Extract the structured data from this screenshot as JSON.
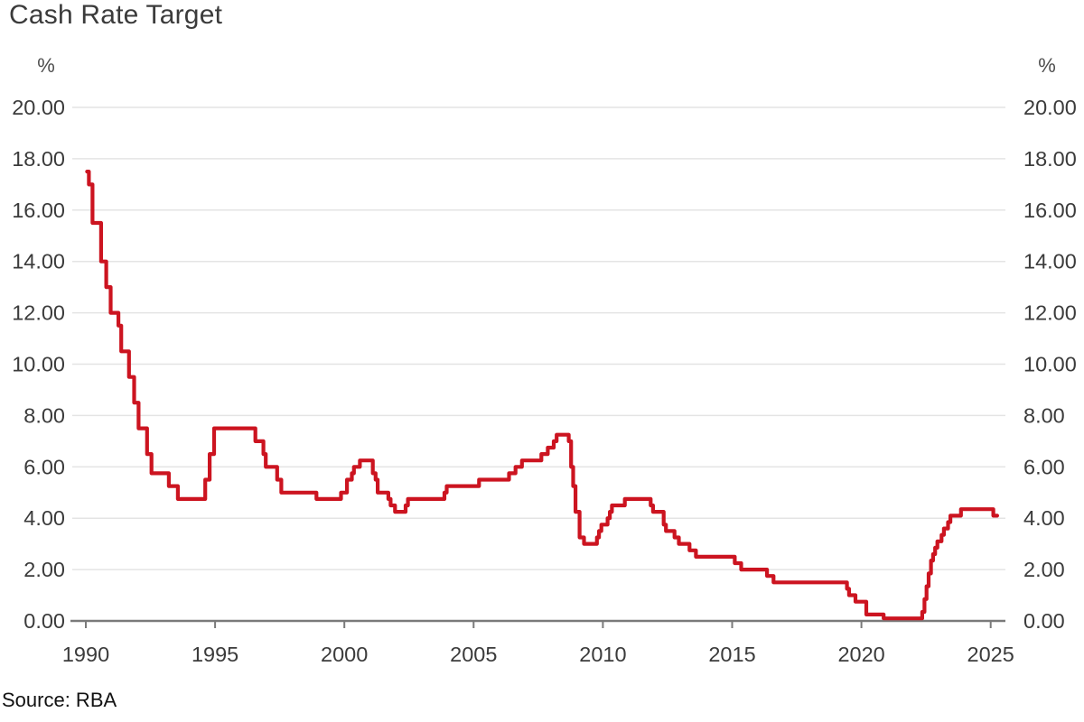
{
  "title": "Cash Rate Target",
  "source": "Source: RBA",
  "chart_data": {
    "type": "line",
    "title": "Cash Rate Target",
    "unit_label": "%",
    "source": "Source: RBA",
    "line_color": "#cc1420",
    "grid_color": "#e4e4e4",
    "axis_color": "#7a7a7a",
    "tick_label_color": "#3b3b3b",
    "grid": "horizontal",
    "legend": "none",
    "xlim": [
      1989.42,
      2025.6
    ],
    "ylim": [
      0,
      20
    ],
    "x_ticks": [
      1990,
      1995,
      2000,
      2005,
      2010,
      2015,
      2020,
      2025
    ],
    "y_ticks": [
      0,
      2,
      4,
      6,
      8,
      10,
      12,
      14,
      16,
      18,
      20
    ],
    "y_tick_labels": [
      "0.00",
      "2.00",
      "4.00",
      "6.00",
      "8.00",
      "10.00",
      "12.00",
      "14.00",
      "16.00",
      "18.00",
      "20.00"
    ],
    "series": [
      {
        "name": "Cash Rate Target (%)",
        "step": "after",
        "points": [
          [
            1990.05,
            17.5
          ],
          [
            1990.12,
            17.0
          ],
          [
            1990.26,
            15.5
          ],
          [
            1990.59,
            14.0
          ],
          [
            1990.79,
            13.0
          ],
          [
            1990.96,
            12.0
          ],
          [
            1991.26,
            11.5
          ],
          [
            1991.37,
            10.5
          ],
          [
            1991.67,
            9.5
          ],
          [
            1991.87,
            8.5
          ],
          [
            1992.04,
            7.5
          ],
          [
            1992.37,
            6.5
          ],
          [
            1992.54,
            5.75
          ],
          [
            1993.21,
            5.25
          ],
          [
            1993.56,
            4.75
          ],
          [
            1994.62,
            5.5
          ],
          [
            1994.79,
            6.5
          ],
          [
            1994.96,
            7.5
          ],
          [
            1996.56,
            7.0
          ],
          [
            1996.87,
            6.5
          ],
          [
            1996.96,
            6.0
          ],
          [
            1997.4,
            5.5
          ],
          [
            1997.56,
            5.0
          ],
          [
            1998.92,
            4.75
          ],
          [
            1999.87,
            5.0
          ],
          [
            2000.1,
            5.5
          ],
          [
            2000.29,
            5.75
          ],
          [
            2000.37,
            6.0
          ],
          [
            2000.6,
            6.25
          ],
          [
            2001.1,
            5.75
          ],
          [
            2001.21,
            5.5
          ],
          [
            2001.29,
            5.0
          ],
          [
            2001.7,
            4.75
          ],
          [
            2001.79,
            4.5
          ],
          [
            2001.96,
            4.25
          ],
          [
            2002.37,
            4.5
          ],
          [
            2002.46,
            4.75
          ],
          [
            2003.87,
            5.0
          ],
          [
            2003.96,
            5.25
          ],
          [
            2005.21,
            5.5
          ],
          [
            2006.37,
            5.75
          ],
          [
            2006.62,
            6.0
          ],
          [
            2006.87,
            6.25
          ],
          [
            2007.62,
            6.5
          ],
          [
            2007.87,
            6.75
          ],
          [
            2008.1,
            7.0
          ],
          [
            2008.21,
            7.25
          ],
          [
            2008.68,
            7.0
          ],
          [
            2008.77,
            6.0
          ],
          [
            2008.85,
            5.25
          ],
          [
            2008.94,
            4.25
          ],
          [
            2009.1,
            3.25
          ],
          [
            2009.27,
            3.0
          ],
          [
            2009.77,
            3.25
          ],
          [
            2009.85,
            3.5
          ],
          [
            2009.94,
            3.75
          ],
          [
            2010.18,
            4.0
          ],
          [
            2010.27,
            4.25
          ],
          [
            2010.35,
            4.5
          ],
          [
            2010.85,
            4.75
          ],
          [
            2011.85,
            4.5
          ],
          [
            2011.94,
            4.25
          ],
          [
            2012.35,
            3.75
          ],
          [
            2012.44,
            3.5
          ],
          [
            2012.77,
            3.25
          ],
          [
            2012.94,
            3.0
          ],
          [
            2013.35,
            2.75
          ],
          [
            2013.6,
            2.5
          ],
          [
            2015.1,
            2.25
          ],
          [
            2015.35,
            2.0
          ],
          [
            2016.35,
            1.75
          ],
          [
            2016.6,
            1.5
          ],
          [
            2019.44,
            1.25
          ],
          [
            2019.52,
            1.0
          ],
          [
            2019.77,
            0.75
          ],
          [
            2020.19,
            0.25
          ],
          [
            2020.86,
            0.1
          ],
          [
            2022.35,
            0.35
          ],
          [
            2022.44,
            0.85
          ],
          [
            2022.52,
            1.35
          ],
          [
            2022.6,
            1.85
          ],
          [
            2022.69,
            2.35
          ],
          [
            2022.77,
            2.6
          ],
          [
            2022.85,
            2.85
          ],
          [
            2022.94,
            3.1
          ],
          [
            2023.1,
            3.35
          ],
          [
            2023.19,
            3.6
          ],
          [
            2023.35,
            3.85
          ],
          [
            2023.44,
            4.1
          ],
          [
            2023.85,
            4.35
          ],
          [
            2025.1,
            4.1
          ],
          [
            2025.25,
            4.1
          ]
        ]
      }
    ]
  }
}
